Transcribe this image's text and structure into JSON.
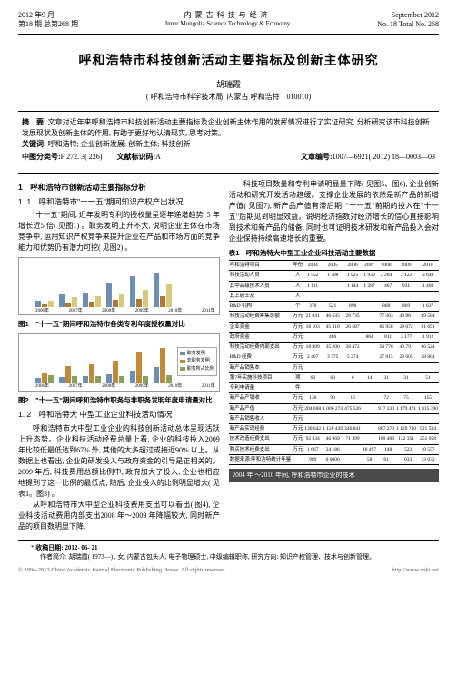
{
  "header": {
    "left_line1": "2012 年9 月",
    "left_line2": "第18 期 总第268 期",
    "center_cn": "内蒙古科技与经济",
    "center_en": "Inner Mongolia Science Technology & Economy",
    "right_line1": "September 2012",
    "right_line2": "No. 18 Total No. 268"
  },
  "title": "呼和浩特市科技创新活动主要指标及创新主体研究",
  "author": "胡瑞霞",
  "affiliation": "( 呼和浩特市科学技术局, 内蒙古 呼和浩特　010010)",
  "abstract": {
    "label_abs": "摘　要:",
    "abs_text": "文章对近年来呼和浩特市科技创新活动主要指标及企业创新主体作用的发挥情况进行了实证研究, 分析研究该市科技创新发展现状及创新主体的作用, 有助于更好地认清现实, 思考对策。",
    "label_kw": "关键词:",
    "kw_text": "呼和浩特; 企业创新发展; 创新主体; 科技创新",
    "clc_label": "中图分类号:",
    "clc": "F 272. 3( 226)",
    "doc_label": "文献标识码:",
    "doc": "A",
    "issn_label": "文章编号:",
    "issn": "1007—6921( 2012) 18—0003—03"
  },
  "left_col": {
    "h1": "1　呼和浩特市创新活动主要指标分析",
    "h11": "1. 1　呼和浩特市\"十一五\"期间知识产权产出状况",
    "p1": "\"十一五\"期间, 近年发明专利的授权量呈逐年递增趋势, 5 年增长近5 倍( 见图1) 。职务发明上升不大, 说明企业主体在市场竞争中, 运用知识产权竞争来提升企业在产品和市场方面的竞争能力和优势仍有潜力可挖( 见图2) 。",
    "fig1_caption": "图1　\"十一五\"期间呼和浩特市各类专利年度授权量对比",
    "fig2_caption": "图2　\"十一五\"期间呼和浩特市职务与非职务发明年度申请量对比",
    "h12": "1. 2　呼和浩特大 中型工业企业科技活动情况",
    "p2": "呼和浩特市大中型工业企业的科技创新活动总体呈现活跃上升态势。企业科技活动经费总量上看, 企业的科技投入2009 年比较低最低达到67% 外, 其他的大多超过或接近90% 以上。从数据上也看出, 企业的研发投入与政府资金的引导是正相关的。2009 年后, 科技费用总额比例中, 政府加大了投入, 企业也相应地提到了这一比例的最低点, 随后, 企业投入的比例明显增大( 见表1。图3) 。",
    "p3": "从呼和浩特市大中型企业科技费用支出可以看出( 图4), 企业科技活动费用内部支出2008 年～2009 年降幅较大, 同时新产品的项目数明显下降,"
  },
  "right_col": {
    "p1": "科技项目数量和专利申请明显量下降( 见图5、图6), 企业创新活动和研究开发活动趋缓。支撑企业发展的依然是新产品的新增产值( 见图7), 新产品产值有滞后期, \"十一五\"前期的投入在\"十一五\"后期见到明显效益。说明经济指数对经济增长的信心直接影响到技术和新产品的储备, 同时也可证明技术研发和新产品投入会对企业保持持续高速增长的重要。",
    "table1_caption": "表1　呼和浩特大中型工业企业科技活动主要数据",
    "table1": {
      "header": [
        "呼和浩特项目",
        "年份",
        "2004",
        "2005",
        "2006",
        "2007",
        "2008",
        "2009",
        "2010"
      ],
      "rows": [
        [
          "科技活动人员",
          "人",
          "1 552",
          "1 708",
          "1 925",
          "1 939",
          "2 204",
          "2 122",
          "3 649"
        ],
        [
          "其中高级技术人员",
          "人",
          "1 111",
          "",
          "1 144",
          "1 287",
          "1 467",
          "931",
          "1 408"
        ],
        [
          "其上硕士及",
          "人",
          "",
          "",
          "",
          "",
          "",
          "",
          ""
        ],
        [
          "R&D 机构",
          "个",
          "376",
          "521",
          "898",
          "",
          "868",
          "869",
          "1 637"
        ],
        [
          "科技活动经费筹集总额",
          "万元",
          "21 041",
          "46 635",
          "28 735",
          "",
          "77 303",
          "49 881",
          "99 584"
        ],
        [
          "企业资金",
          "万元",
          "18 103",
          "45 810",
          "26 587",
          "",
          "66 958",
          "28 072",
          "81 691"
        ],
        [
          "政府资金",
          "万元",
          "",
          "486",
          "",
          "864",
          "1 811",
          "3 177",
          "1 912"
        ],
        [
          "科技活动经费内部支出",
          "万元",
          "18 989",
          "35 200",
          "28 472",
          "",
          "54 776",
          "40 791",
          "86 524"
        ],
        [
          "R&D 经费",
          "万元",
          "2 467",
          "3 775",
          "5 374",
          "",
          "27 815",
          "29 605",
          "58 864"
        ],
        [
          "新产品销售本",
          "万元",
          "",
          "",
          "",
          "",
          "",
          "",
          ""
        ],
        [
          "第7年实施科技项目",
          "项",
          "66",
          "63",
          "6",
          "14",
          "31",
          "31",
          "51"
        ],
        [
          "专利申请量",
          "件",
          "",
          "",
          "",
          "",
          "",
          "",
          ""
        ],
        [
          "新产品产销收",
          "万元",
          "136",
          "90",
          "16",
          "",
          "72",
          "75",
          "155"
        ],
        [
          "新产品产值",
          "万元",
          "204 668",
          "1 006 274",
          "475 526",
          "",
          "917 230",
          "1 179 471",
          "1 415 390"
        ],
        [
          "新产品销售收入",
          "万元",
          "",
          "",
          "",
          "",
          "",
          "",
          ""
        ],
        [
          "新产品实现经费",
          "万元",
          "130 642",
          "1 120 439",
          "346 841",
          "",
          "887 270",
          "1 129 730",
          "921 534"
        ],
        [
          "技术改造经费支出",
          "万元",
          "92 834",
          "46 869",
          "71 399",
          "",
          "109 409",
          "142 351",
          "251 958"
        ],
        [
          "购买技术经费支出",
          "万元",
          "1 667",
          "24 186",
          "",
          "18 497",
          "1 148",
          "1 522",
          "10 557"
        ],
        [
          "数据来源:呼和浩特统计年鉴",
          "",
          "989",
          "0 0000",
          "",
          "58",
          "61",
          "1 033",
          "13 032"
        ]
      ]
    },
    "footer_band": "2004 年 ～2010 年间, 呼和浩特市企业的技术"
  },
  "charts": {
    "chart1": {
      "years": [
        "2006年",
        "2007年",
        "2008年",
        "2009年",
        "2010年",
        "2011年"
      ],
      "series_colors": [
        "#6b8fb5",
        "#b47836",
        "#d9c97a"
      ],
      "legend": [
        "发明",
        "实用新型",
        "外观设计"
      ],
      "values": {
        "s1": [
          30,
          62,
          70,
          115,
          148,
          165
        ],
        "s2": [
          15,
          22,
          28,
          35,
          42,
          55
        ],
        "s3": [
          32,
          48,
          55,
          60,
          85,
          110
        ]
      },
      "ymax": 180
    },
    "chart2": {
      "years": [
        "2006年",
        "2007年",
        "2008年",
        "2009年",
        "2010年",
        "2011年"
      ],
      "series_colors": [
        "#6b8fb5",
        "#c08a3a",
        "#8aa05a"
      ],
      "legend": [
        "职务发明",
        "非职务发明",
        "职务所占比例"
      ],
      "values": {
        "s1": [
          20,
          25,
          28,
          35,
          50,
          65
        ],
        "s2": [
          40,
          68,
          75,
          90,
          120,
          140
        ],
        "s3": [
          30,
          28,
          27,
          28,
          29,
          32
        ]
      },
      "ymax": 150
    }
  },
  "footnote": {
    "recv": "收稿日期: 2012- 06- 21",
    "author": "作者简介: 胡瑞霞( 1973—) , 女, 内蒙古包头人, 电子物理硕士, 中级编辑职称, 研究方向: 知识产权管理、技术与创新管理。"
  },
  "copyright": {
    "left": "© 1994-2013 China Academic Journal Electronic Publishing House. All rights reserved.",
    "right": "http://www.cnki.net"
  }
}
